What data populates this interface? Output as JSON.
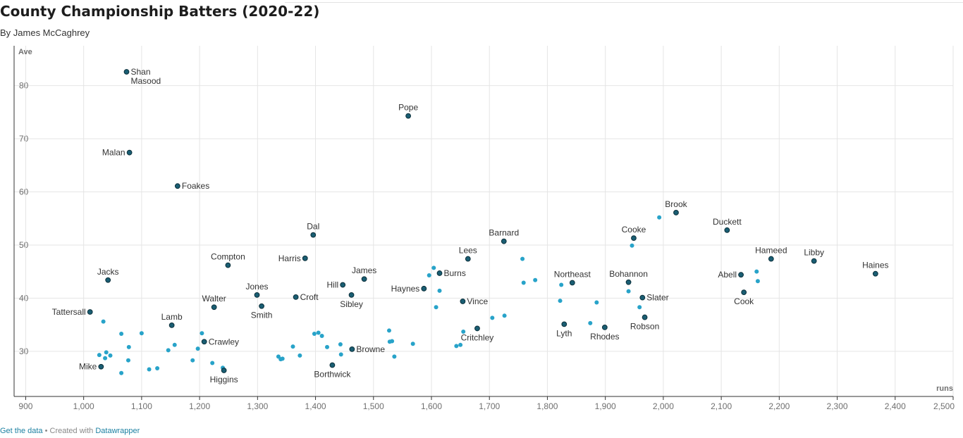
{
  "header": {
    "title": "County Championship Batters (2020-22)",
    "byline": "By James McCaghrey"
  },
  "footer": {
    "get_data": "Get the data",
    "separator": " • Created with ",
    "tool": "Datawrapper"
  },
  "colors": {
    "highlight_point": "#1a5e73",
    "highlight_stroke": "#0b2f3a",
    "point": "#28a3c9",
    "grid": "#e5e5e5",
    "link": "#1d81a2"
  },
  "chart_data": {
    "type": "scatter",
    "xlabel": "runs",
    "ylabel": "Ave",
    "xlim": [
      880,
      2500
    ],
    "ylim": [
      21.5,
      87.5
    ],
    "x_ticks": [
      900,
      1000,
      1100,
      1200,
      1300,
      1400,
      1500,
      1600,
      1700,
      1800,
      1900,
      2000,
      2100,
      2200,
      2300,
      2400,
      2500
    ],
    "x_tick_labels": [
      "900",
      "1,000",
      "1,100",
      "1,200",
      "1,300",
      "1,400",
      "1,500",
      "1,600",
      "1,700",
      "1,800",
      "1,900",
      "2,000",
      "2,100",
      "2,200",
      "2,300",
      "2,400",
      "2,500"
    ],
    "y_ticks": [
      30,
      40,
      50,
      60,
      70,
      80
    ],
    "y_tick_labels": [
      "30",
      "40",
      "50",
      "60",
      "70",
      "80"
    ],
    "grid": true,
    "labeled_points": [
      {
        "label": "Shan Masood",
        "lines": [
          "Shan",
          "Masood"
        ],
        "runs": 1074,
        "ave": 82.6,
        "pos": "right"
      },
      {
        "label": "Pope",
        "runs": 1560,
        "ave": 74.3,
        "pos": "above"
      },
      {
        "label": "Malan",
        "runs": 1079,
        "ave": 67.4,
        "pos": "left"
      },
      {
        "label": "Foakes",
        "runs": 1162,
        "ave": 61.1,
        "pos": "right"
      },
      {
        "label": "Brook",
        "runs": 2022,
        "ave": 56.1,
        "pos": "above"
      },
      {
        "label": "Duckett",
        "runs": 2110,
        "ave": 52.8,
        "pos": "above"
      },
      {
        "label": "Dal",
        "runs": 1396,
        "ave": 51.9,
        "pos": "above"
      },
      {
        "label": "Cooke",
        "runs": 1949,
        "ave": 51.3,
        "pos": "above"
      },
      {
        "label": "Barnard",
        "runs": 1725,
        "ave": 50.7,
        "pos": "above"
      },
      {
        "label": "Lees",
        "runs": 1663,
        "ave": 47.4,
        "pos": "above"
      },
      {
        "label": "Hameed",
        "runs": 2186,
        "ave": 47.4,
        "pos": "above"
      },
      {
        "label": "Harris",
        "runs": 1382,
        "ave": 47.5,
        "pos": "left"
      },
      {
        "label": "Libby",
        "runs": 2260,
        "ave": 47.0,
        "pos": "above"
      },
      {
        "label": "Compton",
        "runs": 1249,
        "ave": 46.2,
        "pos": "above"
      },
      {
        "label": "Burns",
        "runs": 1614,
        "ave": 44.7,
        "pos": "right"
      },
      {
        "label": "Haines",
        "runs": 2366,
        "ave": 44.6,
        "pos": "above"
      },
      {
        "label": "Abell",
        "runs": 2134,
        "ave": 44.4,
        "pos": "left"
      },
      {
        "label": "James",
        "runs": 1484,
        "ave": 43.6,
        "pos": "above"
      },
      {
        "label": "Jacks",
        "runs": 1042,
        "ave": 43.4,
        "pos": "above"
      },
      {
        "label": "Northeast",
        "runs": 1843,
        "ave": 42.9,
        "pos": "above"
      },
      {
        "label": "Bohannon",
        "runs": 1940,
        "ave": 43.0,
        "pos": "above"
      },
      {
        "label": "Hill",
        "runs": 1447,
        "ave": 42.5,
        "pos": "left"
      },
      {
        "label": "Haynes",
        "runs": 1587,
        "ave": 41.8,
        "pos": "left"
      },
      {
        "label": "Cook",
        "runs": 2139,
        "ave": 41.1,
        "pos": "below"
      },
      {
        "label": "Jones",
        "runs": 1299,
        "ave": 40.6,
        "pos": "above"
      },
      {
        "label": "Sibley",
        "runs": 1462,
        "ave": 40.6,
        "pos": "below"
      },
      {
        "label": "Croft",
        "runs": 1366,
        "ave": 40.2,
        "pos": "right"
      },
      {
        "label": "Slater",
        "runs": 1964,
        "ave": 40.1,
        "pos": "right"
      },
      {
        "label": "Vince",
        "runs": 1654,
        "ave": 39.4,
        "pos": "right"
      },
      {
        "label": "Smith",
        "runs": 1307,
        "ave": 38.5,
        "pos": "below"
      },
      {
        "label": "Walter",
        "runs": 1225,
        "ave": 38.3,
        "pos": "above"
      },
      {
        "label": "Tattersall",
        "runs": 1011,
        "ave": 37.4,
        "pos": "left"
      },
      {
        "label": "Robson",
        "runs": 1968,
        "ave": 36.4,
        "pos": "below"
      },
      {
        "label": "Lamb",
        "runs": 1152,
        "ave": 34.9,
        "pos": "above"
      },
      {
        "label": "Lyth",
        "runs": 1829,
        "ave": 35.1,
        "pos": "below"
      },
      {
        "label": "Rhodes",
        "runs": 1899,
        "ave": 34.5,
        "pos": "below"
      },
      {
        "label": "Critchley",
        "runs": 1679,
        "ave": 34.3,
        "pos": "below"
      },
      {
        "label": "Crawley",
        "runs": 1208,
        "ave": 31.8,
        "pos": "right"
      },
      {
        "label": "Browne",
        "runs": 1463,
        "ave": 30.4,
        "pos": "right"
      },
      {
        "label": "Mike",
        "runs": 1030,
        "ave": 27.1,
        "pos": "left"
      },
      {
        "label": "Borthwick",
        "runs": 1429,
        "ave": 27.4,
        "pos": "below"
      },
      {
        "label": "Higgins",
        "runs": 1242,
        "ave": 26.4,
        "pos": "below"
      }
    ],
    "points": [
      [
        1034,
        35.6
      ],
      [
        1065,
        33.3
      ],
      [
        1100,
        33.4
      ],
      [
        1027,
        29.3
      ],
      [
        1039,
        29.8
      ],
      [
        1046,
        29.2
      ],
      [
        1037,
        28.7
      ],
      [
        1078,
        30.8
      ],
      [
        1077,
        28.3
      ],
      [
        1065,
        25.9
      ],
      [
        1113,
        26.6
      ],
      [
        1127,
        26.8
      ],
      [
        1146,
        30.2
      ],
      [
        1157,
        31.2
      ],
      [
        1188,
        28.3
      ],
      [
        1197,
        30.5
      ],
      [
        1204,
        33.4
      ],
      [
        1222,
        27.8
      ],
      [
        1240,
        26.9
      ],
      [
        1336,
        29.0
      ],
      [
        1340,
        28.5
      ],
      [
        1343,
        28.6
      ],
      [
        1361,
        30.9
      ],
      [
        1373,
        29.2
      ],
      [
        1398,
        33.3
      ],
      [
        1405,
        33.5
      ],
      [
        1411,
        32.9
      ],
      [
        1420,
        30.8
      ],
      [
        1443,
        31.3
      ],
      [
        1444,
        29.4
      ],
      [
        1527,
        33.9
      ],
      [
        1528,
        31.8
      ],
      [
        1532,
        31.9
      ],
      [
        1536,
        29.0
      ],
      [
        1568,
        31.4
      ],
      [
        1596,
        44.3
      ],
      [
        1604,
        45.7
      ],
      [
        1608,
        38.3
      ],
      [
        1614,
        41.4
      ],
      [
        1643,
        31.0
      ],
      [
        1650,
        31.2
      ],
      [
        1655,
        33.7
      ],
      [
        1705,
        36.3
      ],
      [
        1726,
        36.7
      ],
      [
        1757,
        47.4
      ],
      [
        1759,
        42.9
      ],
      [
        1779,
        43.4
      ],
      [
        1822,
        39.5
      ],
      [
        1824,
        42.5
      ],
      [
        1874,
        35.3
      ],
      [
        1885,
        39.2
      ],
      [
        1940,
        41.3
      ],
      [
        1946,
        49.9
      ],
      [
        1959,
        38.3
      ],
      [
        1993,
        55.2
      ],
      [
        2161,
        45.0
      ],
      [
        2163,
        43.2
      ]
    ]
  }
}
